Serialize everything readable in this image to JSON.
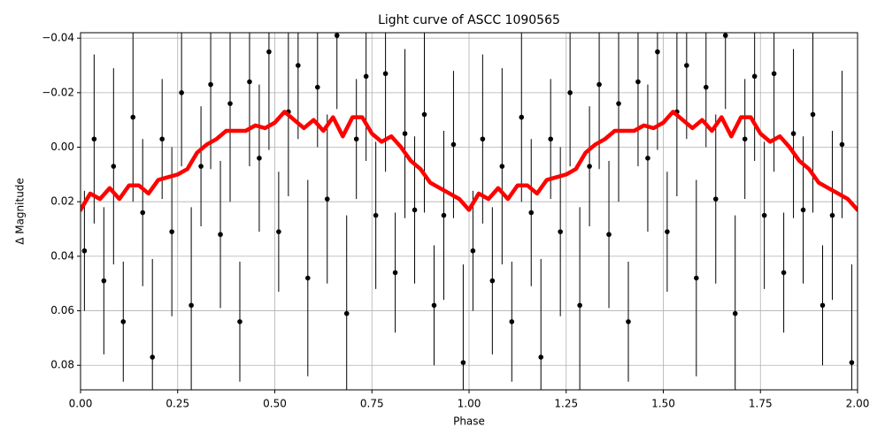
{
  "chart_data": {
    "type": "errorbar",
    "title": "Light curve of ASCC 1090565",
    "xlabel": "Phase",
    "ylabel": "Δ Magnitude",
    "xlim": [
      0,
      2
    ],
    "ylim": [
      0.089,
      -0.042
    ],
    "grid": true,
    "xticks": [
      {
        "value": 0,
        "label": "0.00"
      },
      {
        "value": 0.25,
        "label": "0.25"
      },
      {
        "value": 0.5,
        "label": "0.50"
      },
      {
        "value": 0.75,
        "label": "0.75"
      },
      {
        "value": 1,
        "label": "1.00"
      },
      {
        "value": 1.25,
        "label": "1.25"
      },
      {
        "value": 1.5,
        "label": "1.50"
      },
      {
        "value": 1.75,
        "label": "1.75"
      },
      {
        "value": 2,
        "label": "2.00"
      }
    ],
    "yticks": [
      {
        "value": -0.04,
        "label": "−0.04"
      },
      {
        "value": -0.02,
        "label": "−0.02"
      },
      {
        "value": 0,
        "label": "0.00"
      },
      {
        "value": 0.02,
        "label": "0.02"
      },
      {
        "value": 0.04,
        "label": "0.04"
      },
      {
        "value": 0.06,
        "label": "0.06"
      },
      {
        "value": 0.08,
        "label": "0.08"
      }
    ],
    "series": [
      {
        "type": "errorbar",
        "color": "#000000",
        "x": [
          0.01,
          0.035,
          0.06,
          0.085,
          0.11,
          0.135,
          0.16,
          0.185,
          0.21,
          0.235,
          0.26,
          0.285,
          0.31,
          0.335,
          0.36,
          0.385,
          0.41,
          0.435,
          0.46,
          0.485,
          0.51,
          0.535,
          0.56,
          0.585,
          0.61,
          0.635,
          0.66,
          0.685,
          0.71,
          0.735,
          0.76,
          0.785,
          0.81,
          0.835,
          0.86,
          0.885,
          0.91,
          0.935,
          0.96,
          0.985,
          1.01,
          1.035,
          1.06,
          1.085,
          1.11,
          1.135,
          1.16,
          1.185,
          1.21,
          1.235,
          1.26,
          1.285,
          1.31,
          1.335,
          1.36,
          1.385,
          1.41,
          1.435,
          1.46,
          1.485,
          1.51,
          1.535,
          1.56,
          1.585,
          1.61,
          1.635,
          1.66,
          1.685,
          1.71,
          1.735,
          1.76,
          1.785,
          1.81,
          1.835,
          1.86,
          1.885,
          1.91,
          1.935,
          1.96,
          1.985
        ],
        "values": [
          0.038,
          -0.003,
          0.049,
          0.007,
          0.064,
          -0.011,
          0.024,
          0.077,
          -0.003,
          0.031,
          -0.02,
          0.058,
          0.007,
          -0.023,
          0.032,
          -0.016,
          0.064,
          -0.024,
          0.004,
          -0.035,
          0.031,
          -0.013,
          -0.03,
          0.048,
          -0.022,
          0.019,
          -0.041,
          0.061,
          -0.003,
          -0.026,
          0.025,
          -0.027,
          0.046,
          -0.005,
          0.023,
          -0.012,
          0.058,
          0.025,
          -0.001,
          0.079,
          0.038,
          -0.003,
          0.049,
          0.007,
          0.064,
          -0.011,
          0.024,
          0.077,
          -0.003,
          0.031,
          -0.02,
          0.058,
          0.007,
          -0.023,
          0.032,
          -0.016,
          0.064,
          -0.024,
          0.004,
          -0.035,
          0.031,
          -0.013,
          -0.03,
          0.048,
          -0.022,
          0.019,
          -0.041,
          0.061,
          -0.003,
          -0.026,
          0.025,
          -0.027,
          0.046,
          -0.005,
          0.023,
          -0.012,
          0.058,
          0.025,
          -0.001,
          0.079
        ],
        "errors": [
          0.022,
          0.031,
          0.027,
          0.036,
          0.022,
          0.031,
          0.027,
          0.036,
          0.022,
          0.031,
          0.027,
          0.036,
          0.022,
          0.031,
          0.027,
          0.036,
          0.022,
          0.031,
          0.027,
          0.036,
          0.022,
          0.031,
          0.027,
          0.036,
          0.022,
          0.031,
          0.027,
          0.036,
          0.022,
          0.031,
          0.027,
          0.036,
          0.022,
          0.031,
          0.027,
          0.036,
          0.022,
          0.031,
          0.027,
          0.036,
          0.022,
          0.031,
          0.027,
          0.036,
          0.022,
          0.031,
          0.027,
          0.036,
          0.022,
          0.031,
          0.027,
          0.036,
          0.022,
          0.031,
          0.027,
          0.036,
          0.022,
          0.031,
          0.027,
          0.036,
          0.022,
          0.031,
          0.027,
          0.036,
          0.022,
          0.031,
          0.027,
          0.036,
          0.022,
          0.031,
          0.027,
          0.036,
          0.022,
          0.031,
          0.027,
          0.036,
          0.022,
          0.031,
          0.027,
          0.036
        ]
      },
      {
        "type": "line",
        "color": "#ff0000",
        "x": [
          0,
          0.025,
          0.05,
          0.075,
          0.1,
          0.125,
          0.15,
          0.175,
          0.2,
          0.225,
          0.25,
          0.275,
          0.3,
          0.325,
          0.35,
          0.375,
          0.4,
          0.425,
          0.45,
          0.475,
          0.5,
          0.525,
          0.55,
          0.575,
          0.6,
          0.625,
          0.65,
          0.675,
          0.7,
          0.725,
          0.75,
          0.775,
          0.8,
          0.825,
          0.85,
          0.875,
          0.9,
          0.925,
          0.95,
          0.975,
          1,
          1.025,
          1.05,
          1.075,
          1.1,
          1.125,
          1.15,
          1.175,
          1.2,
          1.225,
          1.25,
          1.275,
          1.3,
          1.325,
          1.35,
          1.375,
          1.4,
          1.425,
          1.45,
          1.475,
          1.5,
          1.525,
          1.55,
          1.575,
          1.6,
          1.625,
          1.65,
          1.675,
          1.7,
          1.725,
          1.75,
          1.775,
          1.8,
          1.825,
          1.85,
          1.875,
          1.9,
          1.925,
          1.95,
          1.975,
          2
        ],
        "values": [
          0.023,
          0.017,
          0.019,
          0.015,
          0.019,
          0.014,
          0.014,
          0.017,
          0.012,
          0.011,
          0.01,
          0.008,
          0.002,
          -0.001,
          -0.003,
          -0.006,
          -0.006,
          -0.006,
          -0.008,
          -0.007,
          -0.009,
          -0.013,
          -0.01,
          -0.007,
          -0.01,
          -0.006,
          -0.011,
          -0.004,
          -0.011,
          -0.011,
          -0.005,
          -0.002,
          -0.004,
          0,
          0.005,
          0.008,
          0.013,
          0.015,
          0.017,
          0.019,
          0.023,
          0.017,
          0.019,
          0.015,
          0.019,
          0.014,
          0.014,
          0.017,
          0.012,
          0.011,
          0.01,
          0.008,
          0.002,
          -0.001,
          -0.003,
          -0.006,
          -0.006,
          -0.006,
          -0.008,
          -0.007,
          -0.009,
          -0.013,
          -0.01,
          -0.007,
          -0.01,
          -0.006,
          -0.011,
          -0.004,
          -0.011,
          -0.011,
          -0.005,
          -0.002,
          -0.004,
          0,
          0.005,
          0.008,
          0.013,
          0.015,
          0.017,
          0.019,
          0.023
        ]
      }
    ]
  }
}
